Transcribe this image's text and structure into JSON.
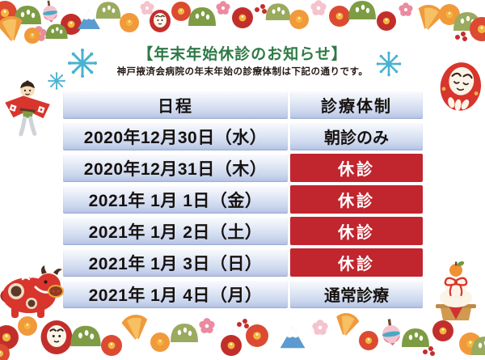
{
  "page": {
    "title": "【年末年始休診のお知らせ】",
    "subtitle": "神戸掖済会病院の年末年始の診療体制は下記の通りです。"
  },
  "table": {
    "headers": {
      "date": "日程",
      "status": "診療体制"
    },
    "rows": [
      {
        "date": "2020年12月30日（水）",
        "status": "朝診のみ",
        "type": "open"
      },
      {
        "date": "2020年12月31日（木）",
        "status": "休診",
        "type": "closed"
      },
      {
        "date": "2021年 1月 1日（金）",
        "status": "休診",
        "type": "closed"
      },
      {
        "date": "2021年 1月 2日（土）",
        "status": "休診",
        "type": "closed"
      },
      {
        "date": "2021年 1月 3日（日）",
        "status": "休診",
        "type": "closed"
      },
      {
        "date": "2021年 1月 4日（月）",
        "status": "通常診療",
        "type": "open"
      }
    ]
  },
  "colors": {
    "title_green": "#2d7a45",
    "closed_red": "#c1252e",
    "cell_blue_top": "#fbfcfe",
    "cell_blue_bottom": "#b2c1e3",
    "snowflake_blue": "#49b2d1",
    "deco_red": "#d8352c",
    "text_dark": "#231815"
  },
  "decorations": {
    "icons": [
      "floral-garland-top",
      "floral-garland-bottom",
      "snowflake-icon",
      "snowflake-icon",
      "snowflake-icon",
      "yakko-kite-icon",
      "red-ox-icon",
      "daruma-icon",
      "kagami-mochi-icon",
      "spinning-top-icon",
      "camellia-flower-icon",
      "pine-icon",
      "plum-blossom-icon",
      "fan-icon",
      "mt-fuji-icon"
    ]
  }
}
